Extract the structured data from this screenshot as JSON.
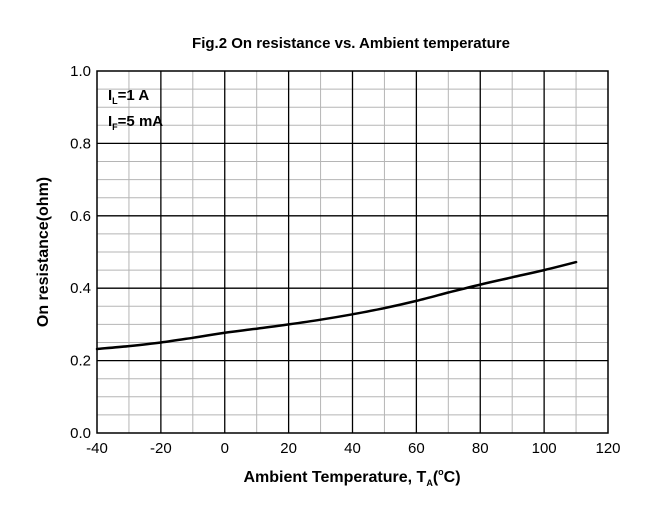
{
  "chart_data": {
    "type": "line",
    "title": "Fig.2 On resistance vs. Ambient temperature",
    "xlabel": {
      "text": "Ambient Temperature, T",
      "sub": "A",
      "sup": "o",
      "unit": "C",
      "open": "(",
      "close": ")"
    },
    "ylabel": "On resistance(ohm)",
    "xlim": [
      -40,
      120
    ],
    "ylim": [
      0.0,
      1.0
    ],
    "x_ticks": [
      "-40",
      "-20",
      "0",
      "20",
      "40",
      "60",
      "80",
      "100",
      "120"
    ],
    "y_ticks": [
      "0.0",
      "0.2",
      "0.4",
      "0.6",
      "0.8",
      "1.0"
    ],
    "grid": true,
    "annotations": [
      {
        "main": "I",
        "sub": "L",
        "rest": "=1 A"
      },
      {
        "main": "I",
        "sub": "F",
        "rest": "=5 mA"
      }
    ],
    "series": [
      {
        "x": [
          -40,
          -30,
          -20,
          -10,
          0,
          10,
          20,
          30,
          40,
          50,
          60,
          70,
          80,
          90,
          100,
          110
        ],
        "y": [
          0.232,
          0.24,
          0.25,
          0.263,
          0.277,
          0.288,
          0.3,
          0.313,
          0.328,
          0.345,
          0.365,
          0.388,
          0.41,
          0.43,
          0.45,
          0.472
        ]
      }
    ]
  }
}
